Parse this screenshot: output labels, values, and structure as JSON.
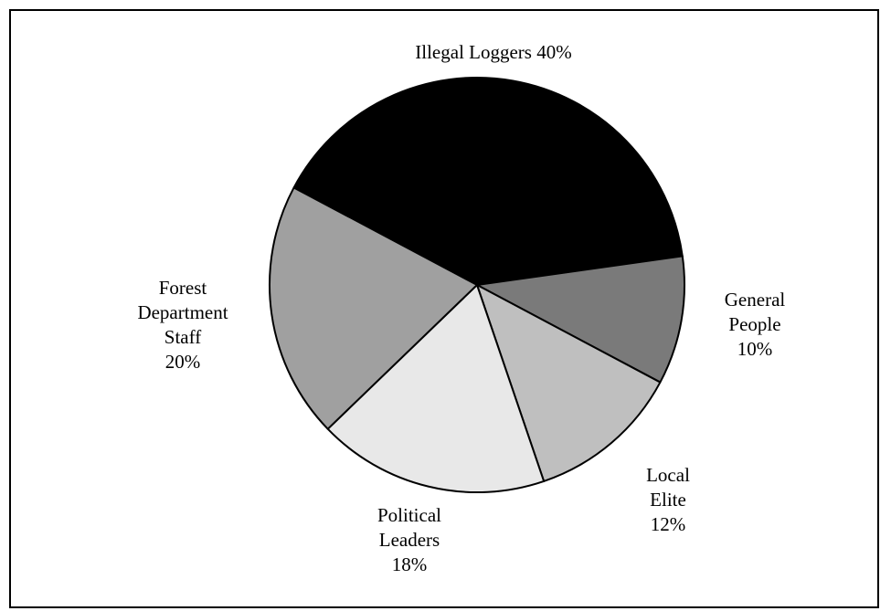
{
  "chart_data": {
    "type": "pie",
    "title": "",
    "slices": [
      {
        "label_lines": [
          "Illegal  Loggers 40%"
        ],
        "category": "Illegal Loggers",
        "value": 40,
        "color": "#000000"
      },
      {
        "label_lines": [
          "General",
          "People",
          "10%"
        ],
        "category": "General People",
        "value": 10,
        "color": "#7a7a7a"
      },
      {
        "label_lines": [
          "Local",
          "Elite",
          "12%"
        ],
        "category": "Local Elite",
        "value": 12,
        "color": "#bfbfbf"
      },
      {
        "label_lines": [
          "Political",
          "Leaders",
          "18%"
        ],
        "category": "Political Leaders",
        "value": 18,
        "color": "#e8e8e8"
      },
      {
        "label_lines": [
          "Forest",
          "Department",
          "Staff",
          "20%"
        ],
        "category": "Forest Department Staff",
        "value": 20,
        "color": "#a0a0a0"
      }
    ],
    "legend": "none",
    "stroke_color": "#000000",
    "border_color": "#000000",
    "background": "#ffffff"
  }
}
